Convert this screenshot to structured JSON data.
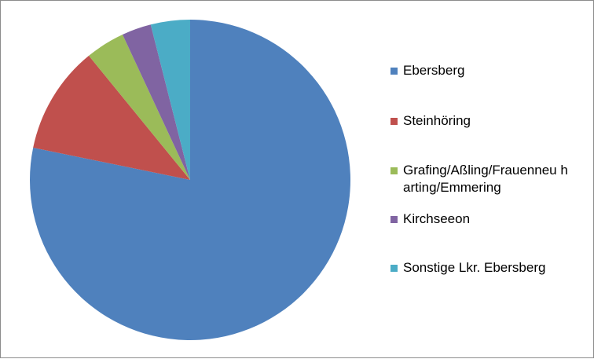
{
  "chart_data": {
    "type": "pie",
    "title": "",
    "series": [
      {
        "values": [
          79,
          11,
          4,
          3,
          4
        ]
      }
    ],
    "categories": [
      "Ebersberg",
      "Steinhöring",
      "Grafing/Aßling/Frauenneuharting/Emmering",
      "Kirchseeon",
      "Sonstige Lkr. Ebersberg"
    ],
    "colors": [
      "#4f81bd",
      "#c0504d",
      "#9bbb59",
      "#8064a2",
      "#4bacc6"
    ],
    "legend_position": "right",
    "start_angle": "top, clockwise"
  },
  "legend": {
    "items": [
      {
        "label": "Ebersberg"
      },
      {
        "label": "Steinhöring"
      },
      {
        "label": "Grafing/Aßling/Frauenneu harting/Emmering"
      },
      {
        "label": "Kirchseeon"
      },
      {
        "label": "Sonstige Lkr. Ebersberg"
      }
    ]
  }
}
